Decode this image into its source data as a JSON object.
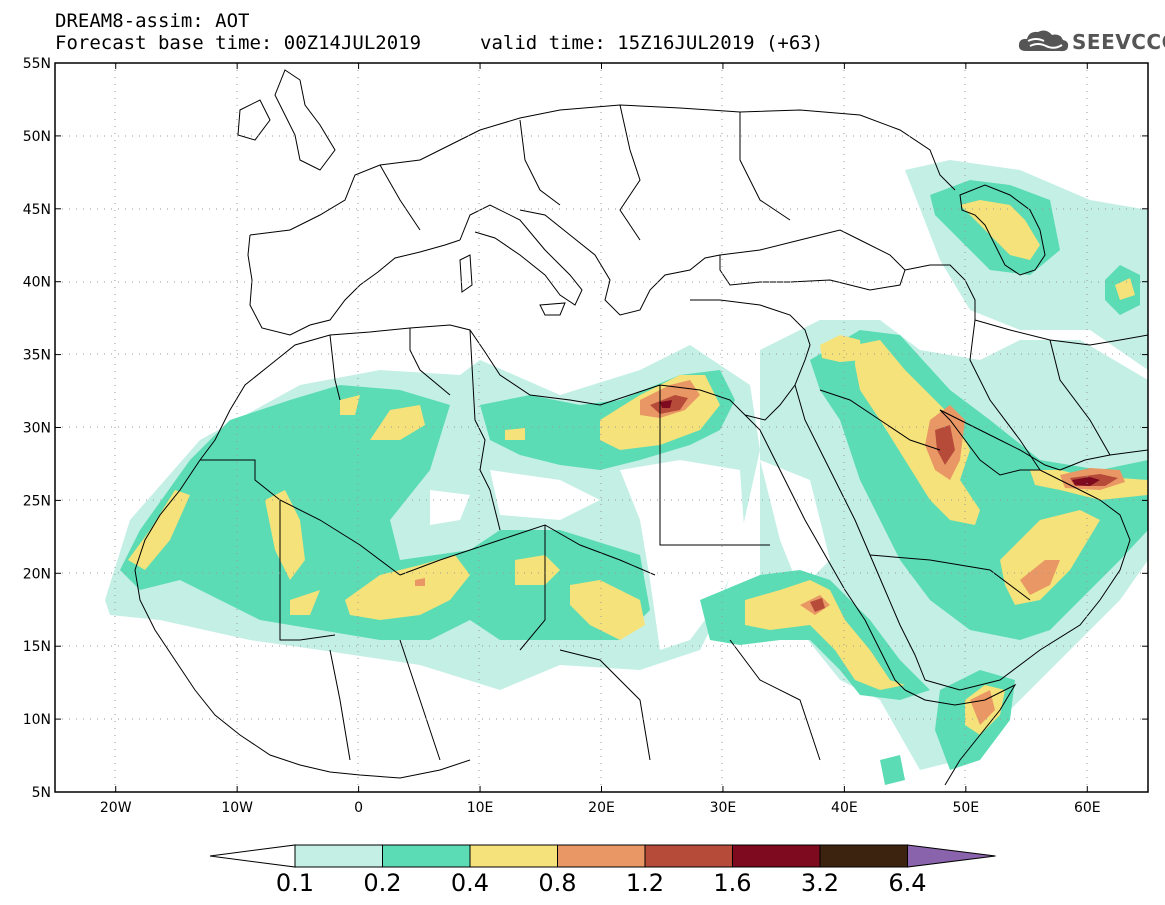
{
  "header": {
    "title_line1": "DREAM8-assim: AOT",
    "title_line2": "Forecast base time: 00Z14JUL2019",
    "valid_time": "valid time: 15Z16JUL2019 (+63)",
    "logo_text": "SEEVCCC"
  },
  "map": {
    "lon_range": [
      -25,
      65
    ],
    "lat_range": [
      5,
      55
    ],
    "y_tick_labels": [
      "55N",
      "50N",
      "45N",
      "40N",
      "35N",
      "30N",
      "25N",
      "20N",
      "15N",
      "10N",
      "5N"
    ],
    "x_tick_labels": [
      "20W",
      "10W",
      "0",
      "10E",
      "20E",
      "30E",
      "40E",
      "50E",
      "60E"
    ]
  },
  "colorbar": {
    "labels": [
      "0.1",
      "0.2",
      "0.4",
      "0.8",
      "1.2",
      "1.6",
      "3.2",
      "6.4"
    ],
    "colors": [
      "#ffffff",
      "#c3efe5",
      "#5cdcb4",
      "#f5e27a",
      "#e99764",
      "#b74b3a",
      "#7d0a1e",
      "#3b2310",
      "#8a63ad"
    ]
  }
}
